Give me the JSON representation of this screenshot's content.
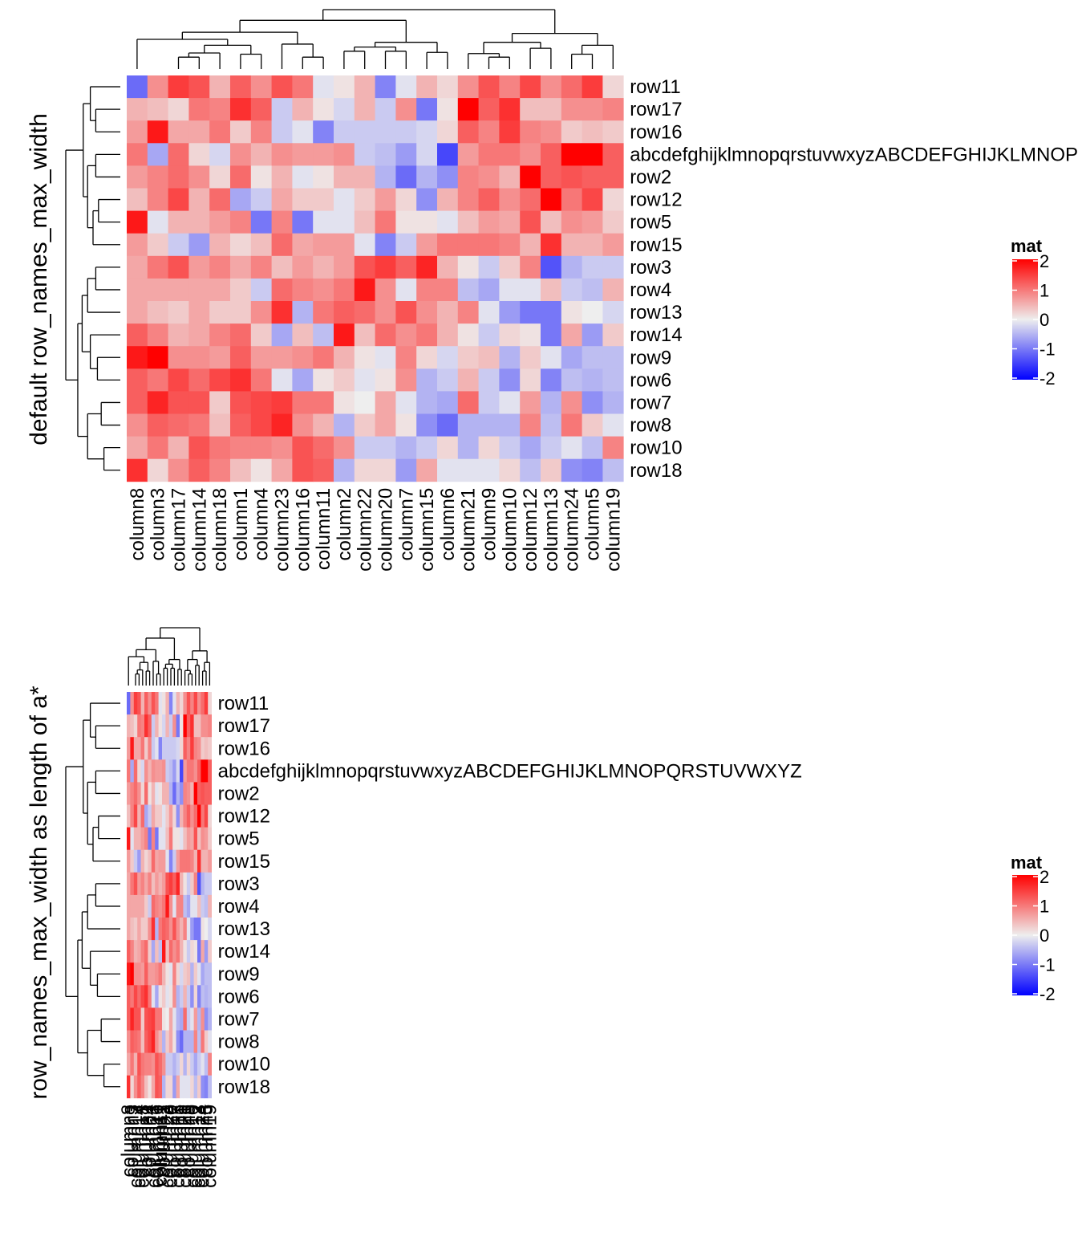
{
  "chart_data": [
    {
      "type": "heatmap",
      "title": "default row_names_max_width",
      "legend": {
        "title": "mat",
        "ticks": [
          "2",
          "1",
          "0",
          "-1",
          "-2"
        ],
        "range": [
          -2,
          2
        ],
        "colors": {
          "low": "#0000FF",
          "mid": "#EEEEEE",
          "high": "#FF0000"
        },
        "position": "right"
      },
      "row_names": [
        "row11",
        "row17",
        "row16",
        "abcdefghijklmnopqrstuvwxyzABCDEFGHIJKLMNOPQRSTUVWXYZ",
        "row2",
        "row12",
        "row5",
        "row15",
        "row3",
        "row4",
        "row13",
        "row14",
        "row9",
        "row6",
        "row7",
        "row8",
        "row10",
        "row18"
      ],
      "column_names": [
        "column8",
        "column3",
        "column17",
        "column14",
        "column18",
        "column1",
        "column4",
        "column23",
        "column16",
        "column11",
        "column2",
        "column22",
        "column20",
        "column7",
        "column15",
        "column6",
        "column21",
        "column9",
        "column10",
        "column12",
        "column13",
        "column24",
        "column5",
        "column19"
      ],
      "row_dendrogram": true,
      "column_dendrogram": true,
      "row_names_label_truncated": true
    },
    {
      "type": "heatmap",
      "title": "row_names_max_width as length of a*",
      "legend": {
        "title": "mat",
        "ticks": [
          "2",
          "1",
          "0",
          "-1",
          "-2"
        ],
        "range": [
          -2,
          2
        ],
        "colors": {
          "low": "#0000FF",
          "mid": "#EEEEEE",
          "high": "#FF0000"
        },
        "position": "right"
      },
      "row_names": [
        "row11",
        "row17",
        "row16",
        "abcdefghijklmnopqrstuvwxyzABCDEFGHIJKLMNOPQRSTUVWXYZ",
        "row2",
        "row12",
        "row5",
        "row15",
        "row3",
        "row4",
        "row13",
        "row14",
        "row9",
        "row6",
        "row7",
        "row8",
        "row10",
        "row18"
      ],
      "column_names": [
        "column8",
        "column3",
        "column17",
        "column14",
        "column18",
        "column1",
        "column4",
        "column23",
        "column16",
        "column11",
        "column2",
        "column22",
        "column20",
        "column7",
        "column15",
        "column6",
        "column21",
        "column9",
        "column10",
        "column12",
        "column13",
        "column24",
        "column5",
        "column19"
      ],
      "row_dendrogram": true,
      "column_dendrogram": true,
      "row_names_label_truncated": false
    }
  ],
  "matrix": [
    [
      -1.1,
      0.8,
      1.5,
      1.3,
      0.5,
      1.2,
      0.8,
      1.3,
      1.0,
      -0.1,
      0.1,
      0.5,
      -0.9,
      -0.1,
      0.5,
      0.2,
      0.8,
      1.3,
      0.9,
      1.4,
      0.8,
      1.1,
      1.5,
      0.2
    ],
    [
      0.5,
      0.4,
      0.2,
      1.0,
      0.9,
      1.6,
      1.2,
      -0.3,
      0.5,
      0.1,
      -0.2,
      0.5,
      -0.3,
      0.8,
      -1.0,
      0.1,
      2.0,
      1.2,
      1.6,
      0.4,
      0.4,
      0.8,
      0.8,
      0.9
    ],
    [
      0.7,
      1.8,
      0.6,
      0.6,
      1.0,
      0.3,
      0.9,
      -0.3,
      -0.1,
      -0.9,
      -0.3,
      -0.3,
      -0.3,
      -0.3,
      -0.2,
      0.2,
      1.2,
      0.9,
      1.5,
      0.9,
      0.8,
      0.3,
      0.4,
      0.3
    ],
    [
      1.0,
      -0.6,
      1.1,
      0.2,
      -0.2,
      0.8,
      0.5,
      0.8,
      0.7,
      0.7,
      0.8,
      -0.3,
      -0.4,
      -0.7,
      -0.2,
      -1.4,
      0.7,
      1.0,
      1.0,
      0.8,
      1.2,
      2.0,
      2.0,
      1.2
    ],
    [
      0.7,
      0.9,
      1.1,
      0.8,
      0.2,
      1.1,
      0.1,
      0.5,
      -0.1,
      0.1,
      0.5,
      0.5,
      -0.5,
      -1.1,
      -0.5,
      -0.8,
      0.9,
      0.8,
      0.5,
      2.0,
      1.2,
      1.3,
      1.2,
      1.2
    ],
    [
      0.4,
      0.9,
      1.4,
      0.5,
      1.1,
      -0.6,
      -0.3,
      0.6,
      0.3,
      0.3,
      -0.1,
      0.3,
      0.7,
      0.2,
      -0.8,
      0.5,
      0.9,
      1.2,
      0.8,
      1.1,
      2.0,
      1.0,
      1.4,
      0.2
    ],
    [
      1.8,
      -0.1,
      0.5,
      0.5,
      0.7,
      0.9,
      -1.0,
      0.9,
      -1.0,
      -0.1,
      -0.1,
      0.4,
      1.0,
      0.1,
      0.1,
      -0.1,
      0.4,
      0.7,
      0.6,
      1.3,
      0.4,
      0.8,
      0.7,
      0.3
    ],
    [
      0.7,
      0.3,
      -0.3,
      -0.7,
      0.5,
      0.2,
      0.4,
      1.1,
      0.6,
      0.7,
      0.7,
      -0.1,
      -0.9,
      -0.3,
      0.7,
      1.0,
      1.0,
      1.0,
      0.9,
      0.5,
      1.6,
      0.5,
      0.5,
      0.7
    ],
    [
      0.6,
      1.0,
      1.3,
      0.7,
      0.9,
      0.6,
      0.9,
      0.4,
      0.7,
      0.5,
      0.7,
      1.3,
      1.5,
      1.2,
      1.7,
      0.5,
      0.1,
      -0.3,
      0.3,
      0.9,
      -1.3,
      -0.5,
      -0.3,
      -0.3
    ],
    [
      0.6,
      0.6,
      0.6,
      0.6,
      0.6,
      0.3,
      -0.3,
      1.1,
      0.9,
      0.8,
      1.0,
      1.8,
      0.8,
      -0.1,
      0.9,
      0.9,
      -0.4,
      -0.6,
      -0.1,
      -0.1,
      0.4,
      -0.3,
      -0.4,
      0.5
    ],
    [
      0.6,
      0.4,
      0.3,
      0.6,
      0.3,
      0.3,
      0.8,
      1.6,
      -0.5,
      1.0,
      1.2,
      1.1,
      0.8,
      1.3,
      0.8,
      0.5,
      0.9,
      -0.1,
      -0.7,
      -1.0,
      -1.0,
      0.1,
      0.0,
      -0.2
    ],
    [
      1.2,
      0.9,
      0.5,
      0.6,
      0.9,
      1.1,
      0.3,
      -0.6,
      0.4,
      -0.4,
      1.8,
      0.4,
      1.1,
      0.8,
      1.0,
      0.5,
      0.1,
      -0.3,
      0.2,
      0.1,
      -1.0,
      0.6,
      -0.7,
      0.3
    ],
    [
      1.8,
      2.0,
      0.8,
      0.8,
      0.7,
      1.2,
      0.7,
      0.7,
      0.8,
      1.0,
      0.5,
      0.1,
      -0.1,
      0.9,
      0.2,
      -0.2,
      0.3,
      0.4,
      -0.5,
      0.3,
      -0.1,
      -0.6,
      -0.4,
      -0.4
    ],
    [
      1.2,
      1.0,
      1.4,
      1.1,
      1.4,
      1.6,
      1.0,
      -0.1,
      -0.6,
      0.1,
      0.3,
      -0.1,
      0.1,
      0.8,
      -0.5,
      -0.3,
      0.5,
      -0.3,
      -0.8,
      0.2,
      -0.9,
      -0.4,
      -0.5,
      -0.4
    ],
    [
      1.2,
      1.7,
      1.3,
      1.3,
      0.3,
      1.3,
      1.4,
      1.5,
      1.0,
      1.0,
      0.1,
      0.0,
      0.6,
      -0.1,
      -0.5,
      -0.6,
      1.1,
      -0.3,
      -0.1,
      0.7,
      -0.5,
      0.8,
      -0.8,
      -0.5
    ],
    [
      0.8,
      1.2,
      1.1,
      1.0,
      0.4,
      1.2,
      1.4,
      1.7,
      0.8,
      0.5,
      -0.5,
      0.3,
      0.6,
      0.1,
      -0.8,
      -1.1,
      -0.5,
      -0.5,
      -0.5,
      0.9,
      -0.4,
      1.0,
      0.3,
      -0.1
    ],
    [
      0.6,
      1.0,
      0.5,
      1.3,
      1.0,
      0.9,
      0.9,
      0.8,
      1.3,
      1.1,
      0.8,
      -0.3,
      -0.3,
      -0.5,
      -0.3,
      0.2,
      -0.5,
      0.2,
      -0.3,
      -0.6,
      -0.3,
      -0.1,
      -0.4,
      0.9
    ],
    [
      1.6,
      0.2,
      0.8,
      1.2,
      0.9,
      0.4,
      0.1,
      0.6,
      1.3,
      1.2,
      -0.5,
      0.2,
      0.2,
      -0.7,
      0.6,
      -0.1,
      -0.1,
      -0.1,
      0.2,
      -0.4,
      0.3,
      -0.8,
      -0.9,
      -0.4
    ]
  ]
}
